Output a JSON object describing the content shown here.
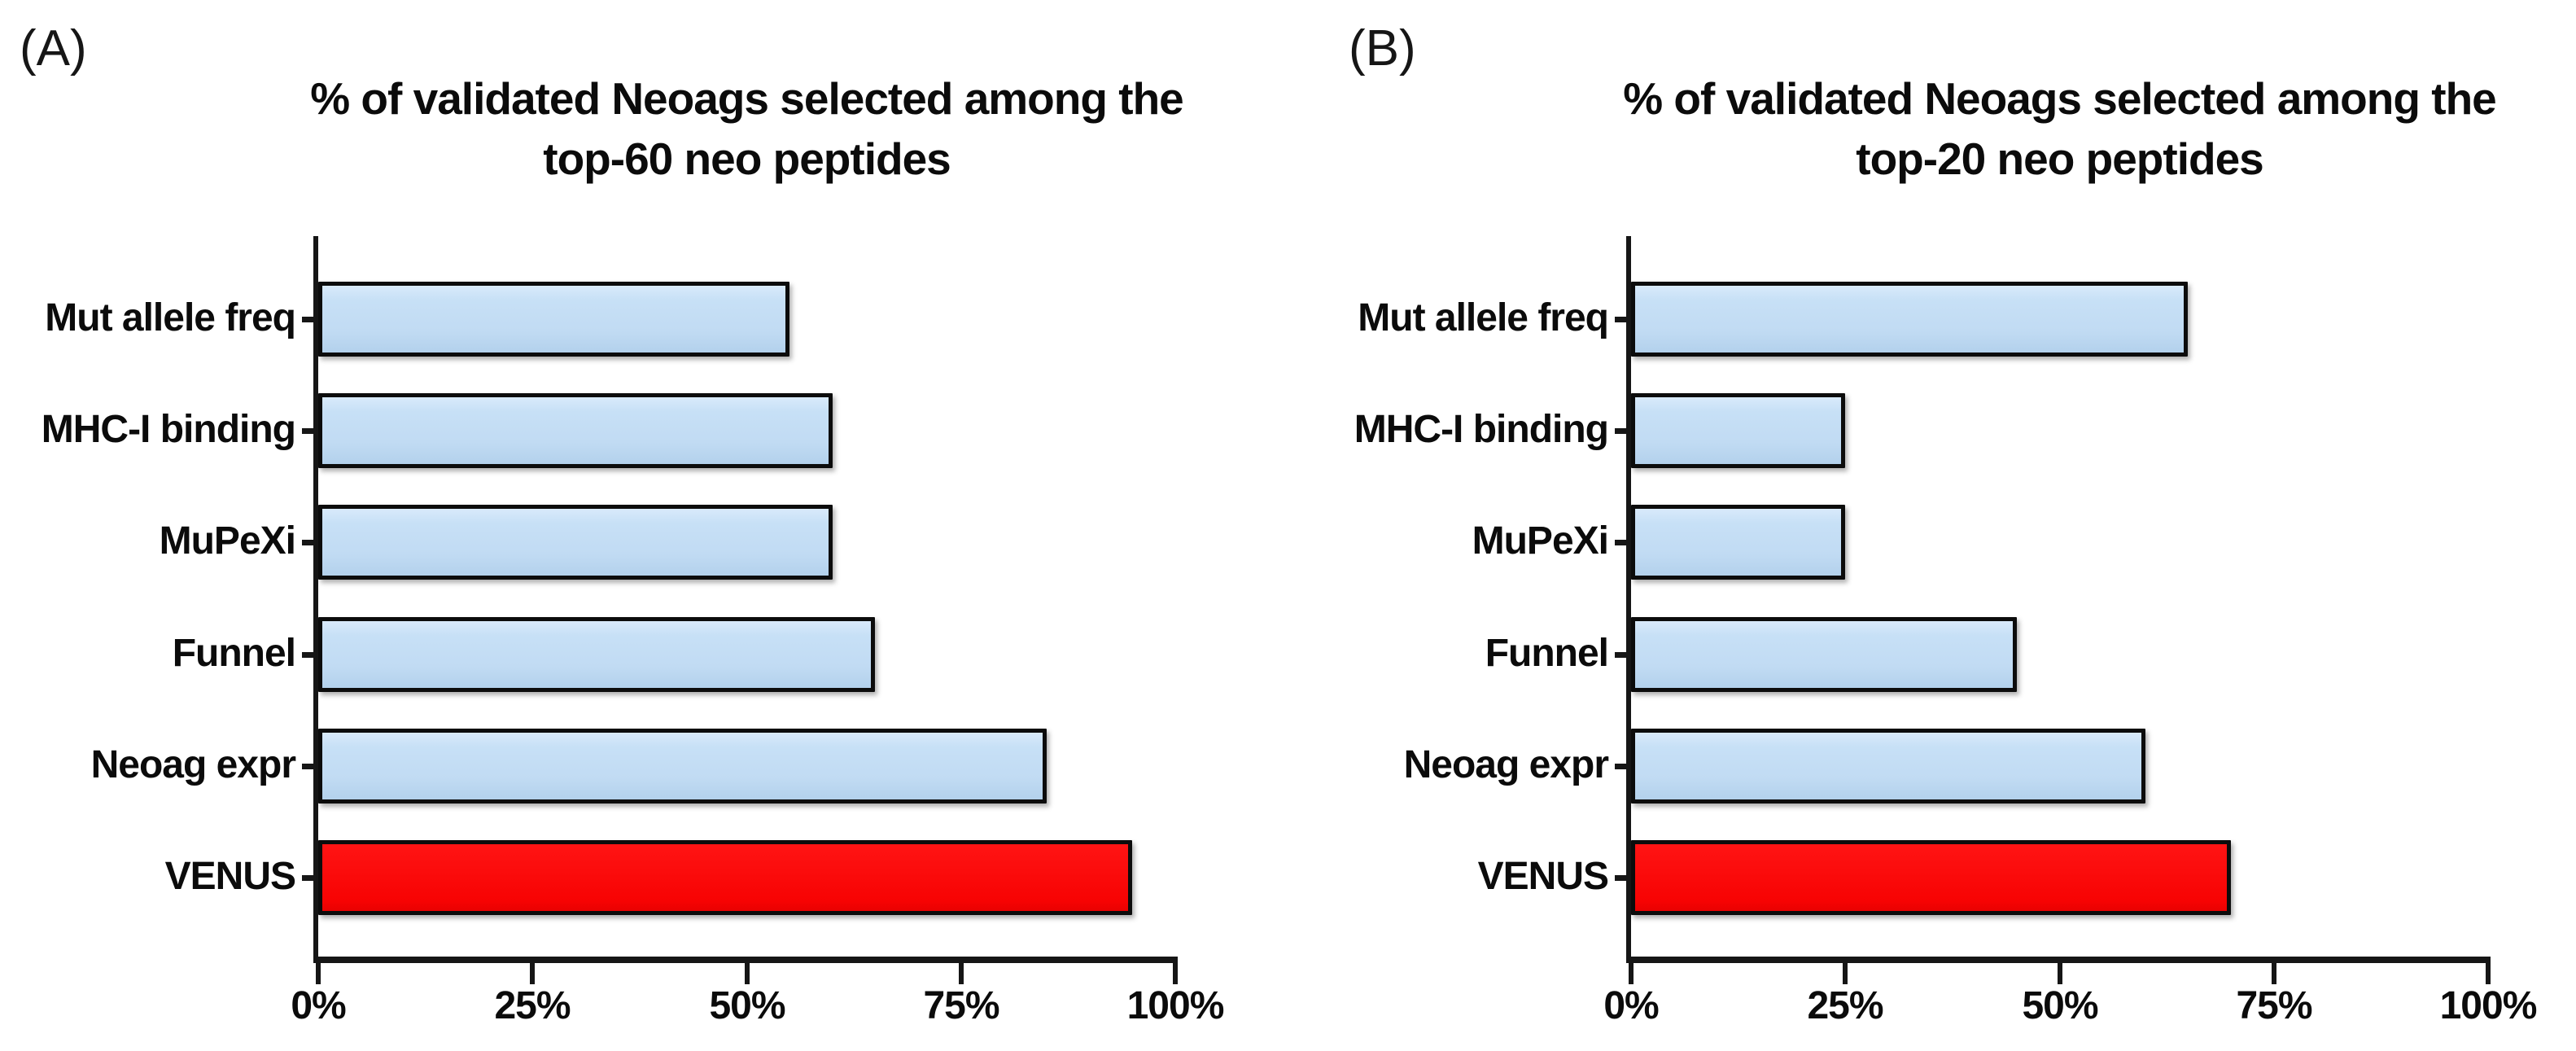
{
  "figure": {
    "background": "#ffffff",
    "panel_a_label": "(A)",
    "panel_b_label": "(B)"
  },
  "colors": {
    "bar_blue": "#C3DDF4",
    "bar_red": "#F90707",
    "bar_border": "#0C0C0C",
    "axis_black": "#161616"
  },
  "chart_data": [
    {
      "type": "bar",
      "orientation": "horizontal",
      "panel_label": "(A)",
      "title": "% of validated Neoags selected among the top-60 neo peptides",
      "title_lines": [
        "% of validated Neoags selected among the",
        "top-60 neo peptides"
      ],
      "categories": [
        "Mut allele freq",
        "MHC-I binding",
        "MuPeXi",
        "Funnel",
        "Neoag expr",
        "VENUS"
      ],
      "values": [
        55,
        60,
        60,
        65,
        85,
        95
      ],
      "unit": "%",
      "xlim": [
        0,
        100
      ],
      "x_tick_values": [
        0,
        25,
        50,
        75,
        100
      ],
      "x_tick_labels": [
        "0%",
        "25%",
        "50%",
        "75%",
        "100%"
      ],
      "grid": false,
      "legend": false,
      "highlight_category": "VENUS",
      "bar_color_default": "#C3DDF4",
      "bar_color_highlight": "#F90707"
    },
    {
      "type": "bar",
      "orientation": "horizontal",
      "panel_label": "(B)",
      "title": "% of validated Neoags selected among the top-20 neo peptides",
      "title_lines": [
        "% of validated Neoags selected among the",
        "top-20 neo peptides"
      ],
      "categories": [
        "Mut allele freq",
        "MHC-I binding",
        "MuPeXi",
        "Funnel",
        "Neoag expr",
        "VENUS"
      ],
      "values": [
        65,
        25,
        25,
        45,
        60,
        70
      ],
      "unit": "%",
      "xlim": [
        0,
        100
      ],
      "x_tick_values": [
        0,
        25,
        50,
        75,
        100
      ],
      "x_tick_labels": [
        "0%",
        "25%",
        "50%",
        "75%",
        "100%"
      ],
      "grid": false,
      "legend": false,
      "highlight_category": "VENUS",
      "bar_color_default": "#C3DDF4",
      "bar_color_highlight": "#F90707"
    }
  ]
}
